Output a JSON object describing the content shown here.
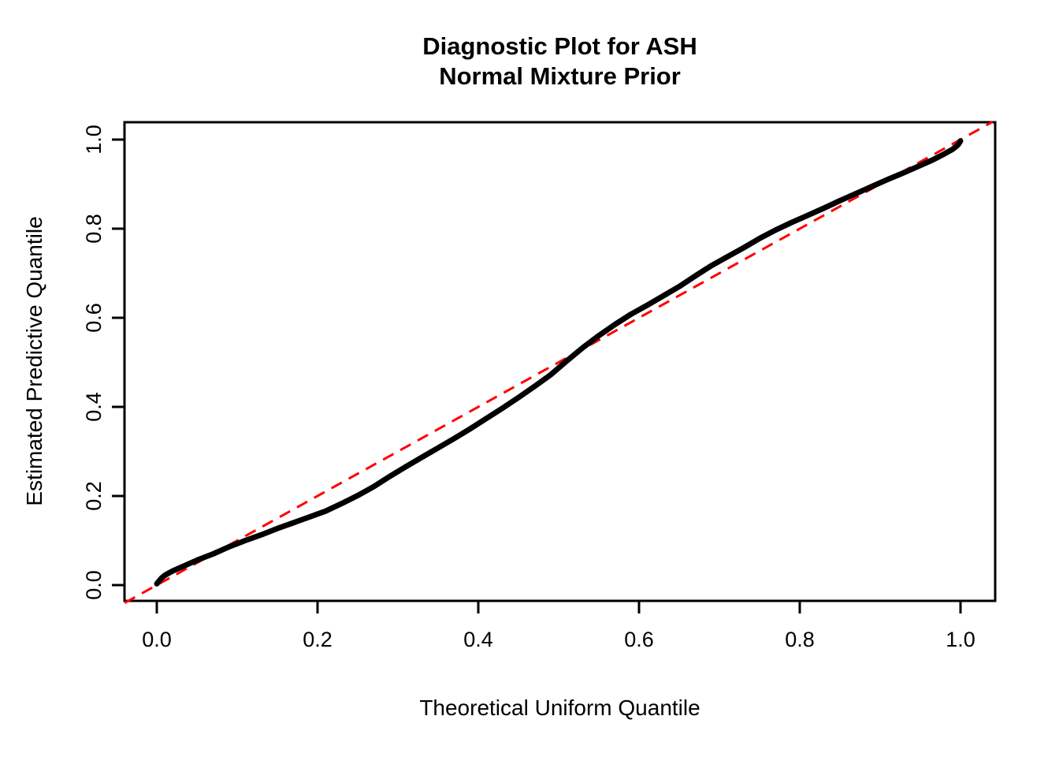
{
  "figure": {
    "background_color": "#ffffff"
  },
  "chart_data": {
    "type": "line",
    "title": "Diagnostic Plot for ASH Normal Mixture Prior",
    "title_lines": [
      "Diagnostic Plot for ASH",
      "Normal Mixture Prior"
    ],
    "xlabel": "Theoretical Uniform Quantile",
    "ylabel": "Estimated Predictive Quantile",
    "xlim": [
      -0.04,
      1.04
    ],
    "ylim": [
      -0.04,
      1.04
    ],
    "x_ticks": [
      0.0,
      0.2,
      0.4,
      0.6,
      0.8,
      1.0
    ],
    "x_tick_labels": [
      "0.0",
      "0.2",
      "0.4",
      "0.6",
      "0.8",
      "1.0"
    ],
    "y_ticks": [
      0.0,
      0.2,
      0.4,
      0.6,
      0.8,
      1.0
    ],
    "y_tick_labels": [
      "0.0",
      "0.2",
      "0.4",
      "0.6",
      "0.8",
      "1.0"
    ],
    "grid": false,
    "legend": null,
    "frame_color": "#000000",
    "series": [
      {
        "name": "estimated-predictive-quantile-curve",
        "type": "line",
        "color": "#000000",
        "line_width": 7,
        "style": "solid",
        "points": [
          [
            0.0,
            0.003
          ],
          [
            0.003,
            0.01
          ],
          [
            0.006,
            0.016
          ],
          [
            0.01,
            0.022
          ],
          [
            0.015,
            0.027
          ],
          [
            0.02,
            0.032
          ],
          [
            0.03,
            0.04
          ],
          [
            0.04,
            0.048
          ],
          [
            0.05,
            0.056
          ],
          [
            0.06,
            0.063
          ],
          [
            0.07,
            0.07
          ],
          [
            0.08,
            0.078
          ],
          [
            0.09,
            0.086
          ],
          [
            0.1,
            0.093
          ],
          [
            0.11,
            0.1
          ],
          [
            0.13,
            0.113
          ],
          [
            0.15,
            0.127
          ],
          [
            0.17,
            0.14
          ],
          [
            0.19,
            0.153
          ],
          [
            0.21,
            0.166
          ],
          [
            0.23,
            0.183
          ],
          [
            0.25,
            0.201
          ],
          [
            0.27,
            0.221
          ],
          [
            0.29,
            0.244
          ],
          [
            0.31,
            0.266
          ],
          [
            0.33,
            0.287
          ],
          [
            0.35,
            0.308
          ],
          [
            0.37,
            0.329
          ],
          [
            0.39,
            0.351
          ],
          [
            0.41,
            0.374
          ],
          [
            0.43,
            0.397
          ],
          [
            0.45,
            0.421
          ],
          [
            0.47,
            0.446
          ],
          [
            0.49,
            0.472
          ],
          [
            0.51,
            0.503
          ],
          [
            0.53,
            0.533
          ],
          [
            0.55,
            0.56
          ],
          [
            0.57,
            0.585
          ],
          [
            0.59,
            0.608
          ],
          [
            0.61,
            0.628
          ],
          [
            0.63,
            0.649
          ],
          [
            0.65,
            0.67
          ],
          [
            0.67,
            0.694
          ],
          [
            0.69,
            0.717
          ],
          [
            0.71,
            0.737
          ],
          [
            0.73,
            0.757
          ],
          [
            0.75,
            0.778
          ],
          [
            0.77,
            0.797
          ],
          [
            0.79,
            0.814
          ],
          [
            0.81,
            0.83
          ],
          [
            0.83,
            0.846
          ],
          [
            0.85,
            0.863
          ],
          [
            0.87,
            0.879
          ],
          [
            0.89,
            0.895
          ],
          [
            0.91,
            0.911
          ],
          [
            0.93,
            0.926
          ],
          [
            0.95,
            0.942
          ],
          [
            0.965,
            0.954
          ],
          [
            0.98,
            0.968
          ],
          [
            0.99,
            0.978
          ],
          [
            0.995,
            0.985
          ],
          [
            0.998,
            0.991
          ],
          [
            1.0,
            0.997
          ]
        ]
      },
      {
        "name": "identity-reference-line",
        "type": "line",
        "color": "#FF0000",
        "line_width": 3,
        "style": "dashed",
        "points": [
          [
            -0.04,
            -0.04
          ],
          [
            1.04,
            1.04
          ]
        ]
      }
    ]
  }
}
